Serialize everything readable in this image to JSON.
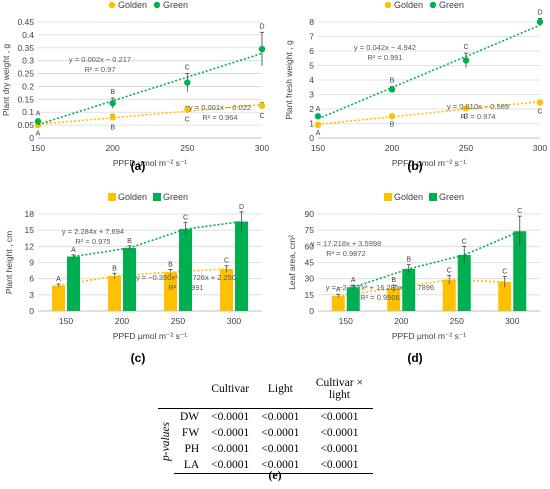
{
  "colors": {
    "golden": "#FFC000",
    "green": "#00B050",
    "grid": "#D9D9D9",
    "eq_golden": "#595959",
    "eq_green": "#595959"
  },
  "chart_data": [
    {
      "panel": "(a)",
      "type": "scatter",
      "ylabel": "Plant dry weight , g",
      "xlabel": "PPFD μmol m⁻² s⁻¹",
      "x": [
        150,
        200,
        250,
        300
      ],
      "xlim": [
        150,
        300
      ],
      "ylim": [
        0,
        0.45
      ],
      "yticks": [
        "0",
        "0.05",
        "0.1",
        "0.15",
        "0.2",
        "0.25",
        "0.3",
        "0.35",
        "0.4",
        "0.45"
      ],
      "xticks": [
        "150",
        "200",
        "250",
        "300"
      ],
      "legend": [
        "Golden",
        "Green"
      ],
      "series": [
        {
          "name": "Golden",
          "values": [
            0.05,
            0.08,
            0.11,
            0.125
          ],
          "err": [
            0.005,
            0.012,
            0.012,
            0.012
          ],
          "letters": [
            "A",
            "B",
            "C",
            "C"
          ],
          "equation": "y = 0.001x − 0.022",
          "r2": "R² = 0.964"
        },
        {
          "name": "Green",
          "values": [
            0.065,
            0.135,
            0.215,
            0.345
          ],
          "err": [
            0.006,
            0.02,
            0.035,
            0.065
          ],
          "letters": [
            "A",
            "B",
            "C",
            "D"
          ],
          "equation": "y = 0.002x − 0.217",
          "r2": "R² = 0.97"
        }
      ]
    },
    {
      "panel": "(b)",
      "type": "scatter",
      "ylabel": "Plant fresh weight , g",
      "xlabel": "PPFD μmol m⁻² s⁻¹",
      "x": [
        150,
        200,
        250,
        300
      ],
      "xlim": [
        150,
        300
      ],
      "ylim": [
        0,
        8
      ],
      "yticks": [
        "0",
        "1",
        "2",
        "3",
        "4",
        "5",
        "6",
        "7",
        "8"
      ],
      "xticks": [
        "150",
        "200",
        "250",
        "300"
      ],
      "legend": [
        "Golden",
        "Green"
      ],
      "series": [
        {
          "name": "Golden",
          "values": [
            0.9,
            1.5,
            2.05,
            2.45
          ],
          "err": [
            0.08,
            0.1,
            0.1,
            0.15
          ],
          "letters": [
            "A",
            "B",
            "C",
            "C"
          ],
          "equation": "y = 0.010x − 0.589",
          "r2": "R² = 0.974"
        },
        {
          "name": "Green",
          "values": [
            1.5,
            3.35,
            5.35,
            8.0
          ],
          "err": [
            0.1,
            0.2,
            0.5,
            0.25
          ],
          "letters": [
            "A",
            "B",
            "C",
            "D"
          ],
          "equation": "y = 0.042x − 4.942",
          "r2": "R² = 0.991"
        }
      ]
    },
    {
      "panel": "(c)",
      "type": "bar",
      "ylabel": "Plant height , cm",
      "xlabel": "PPFD μmol m⁻² s⁻¹",
      "categories": [
        "150",
        "200",
        "250",
        "300"
      ],
      "ylim": [
        0,
        18
      ],
      "yticks": [
        "0",
        "3",
        "6",
        "9",
        "12",
        "15",
        "18"
      ],
      "legend": [
        "Golden",
        "Green"
      ],
      "series": [
        {
          "name": "Golden",
          "values": [
            4.7,
            6.5,
            7.2,
            7.8
          ],
          "err": [
            0.3,
            0.5,
            0.5,
            0.6
          ],
          "letters": [
            "A",
            "B",
            "B",
            "C"
          ],
          "equation": "y = −0.350x² + 2.726x + 2.250",
          "r2": "R² = 0.991"
        },
        {
          "name": "Green",
          "values": [
            10.1,
            11.7,
            15.2,
            16.6
          ],
          "err": [
            0.3,
            0.4,
            1.2,
            1.8
          ],
          "letters": [
            "A",
            "B",
            "C",
            "D"
          ],
          "equation": "y = 2.284x + 7.694",
          "r2": "R² = 0.975"
        }
      ]
    },
    {
      "panel": "(d)",
      "type": "bar",
      "ylabel": "Leaf area, cm²",
      "xlabel": "PPFD μmol m⁻² s⁻¹",
      "categories": [
        "150",
        "200",
        "250",
        "300"
      ],
      "ylim": [
        0,
        90
      ],
      "yticks": [
        "0",
        "15",
        "30",
        "45",
        "60",
        "75",
        "90"
      ],
      "legend": [
        "Golden",
        "Green"
      ],
      "series": [
        {
          "name": "Golden",
          "values": [
            14,
            21,
            29,
            27
          ],
          "err": [
            1.5,
            3,
            4,
            5
          ],
          "letters": [
            "A",
            "B",
            "C",
            "C"
          ],
          "equation": "y = −2.337x² + 16.285x − 0.7896",
          "r2": "R² = 0.9506"
        },
        {
          "name": "Green",
          "values": [
            22,
            39,
            52,
            74
          ],
          "err": [
            2,
            4,
            8,
            14
          ],
          "letters": [
            "A",
            "B",
            "C",
            "C"
          ],
          "equation": "y = 17.218x + 3.5998",
          "r2": "R² = 0.9872"
        }
      ]
    },
    {
      "panel": "(e)",
      "type": "table",
      "header": [
        "Cultivar",
        "Light",
        "Cultivar × light"
      ],
      "row_group_label": "p-values",
      "rows": [
        {
          "name": "DW",
          "values": [
            "<0.0001",
            "<0.0001",
            "<0.0001"
          ]
        },
        {
          "name": "FW",
          "values": [
            "<0.0001",
            "<0.0001",
            "<0.0001"
          ]
        },
        {
          "name": "PH",
          "values": [
            "<0.0001",
            "<0.0001",
            "<0.0001"
          ]
        },
        {
          "name": "LA",
          "values": [
            "<0.0001",
            "<0.0001",
            "<0.0001"
          ]
        }
      ]
    }
  ]
}
